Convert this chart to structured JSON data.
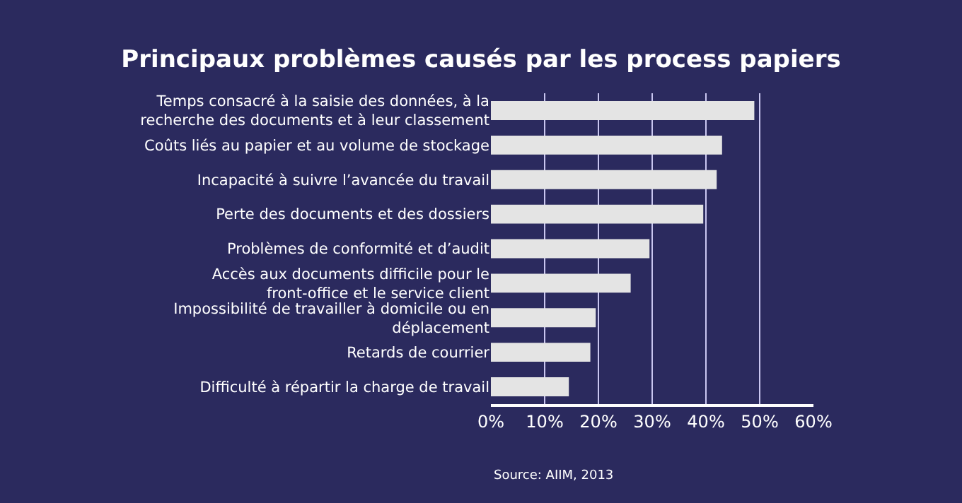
{
  "chart_data": {
    "type": "bar",
    "orientation": "horizontal",
    "title": "Principaux problèmes causés par les process papiers",
    "categories": [
      "Temps consacré à la saisie des données, à la recherche des documents et à leur classement",
      "Coûts liés au papier et au volume de stockage",
      "Incapacité à suivre l’avancée du travail",
      "Perte des documents et des dossiers",
      "Problèmes de conformité et d’audit",
      "Accès aux documents difficile pour le front-office et le service client",
      "Impossibilité de travailler à domicile ou en déplacement",
      "Retards de courrier",
      "Difficulté à répartir la charge de travail"
    ],
    "values": [
      49,
      43,
      42,
      39.5,
      29.5,
      26,
      19.5,
      18.5,
      14.5
    ],
    "color": "#e4e4e4",
    "xlim": [
      0,
      60
    ],
    "xticks": [
      {
        "value": 0,
        "label": "0%"
      },
      {
        "value": 10,
        "label": "10%"
      },
      {
        "value": 20,
        "label": "20%"
      },
      {
        "value": 30,
        "label": "30%"
      },
      {
        "value": 40,
        "label": "40%"
      },
      {
        "value": 50,
        "label": "50%"
      },
      {
        "value": 60,
        "label": "60%"
      }
    ],
    "grid": "x",
    "annotations": [
      "Source: AIIM, 2013"
    ]
  }
}
